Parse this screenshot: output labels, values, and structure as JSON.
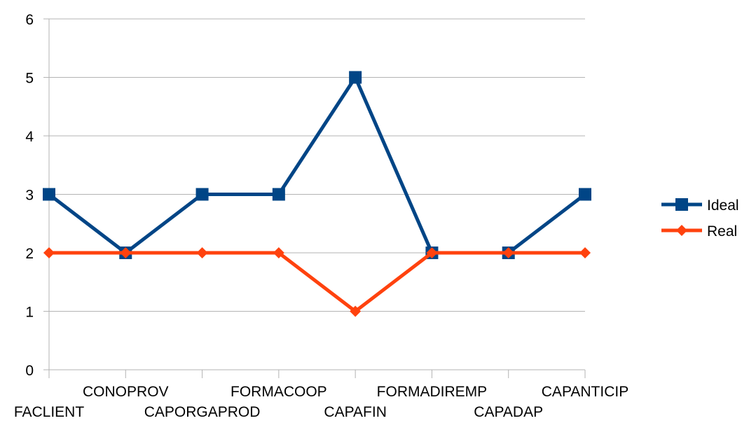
{
  "chart_data": {
    "type": "line",
    "title": "",
    "xlabel": "",
    "ylabel": "",
    "categories": [
      "FACLIENT",
      "CONOPROV",
      "CAPORGAPROD",
      "FORMACOOP",
      "CAPAFIN",
      "FORMADIREMP",
      "CAPADAP",
      "CAPANTICIP"
    ],
    "ylim": [
      0,
      6
    ],
    "yticks": [
      0,
      1,
      2,
      3,
      4,
      5,
      6
    ],
    "grid": "horizontal",
    "legend_position": "right",
    "series": [
      {
        "name": "Ideal",
        "values": [
          3,
          2,
          3,
          3,
          5,
          2,
          2,
          3
        ],
        "color": "#004586",
        "marker": "square"
      },
      {
        "name": "Real",
        "values": [
          2,
          2,
          2,
          2,
          1,
          2,
          2,
          2
        ],
        "color": "#ff420e",
        "marker": "diamond"
      }
    ]
  }
}
